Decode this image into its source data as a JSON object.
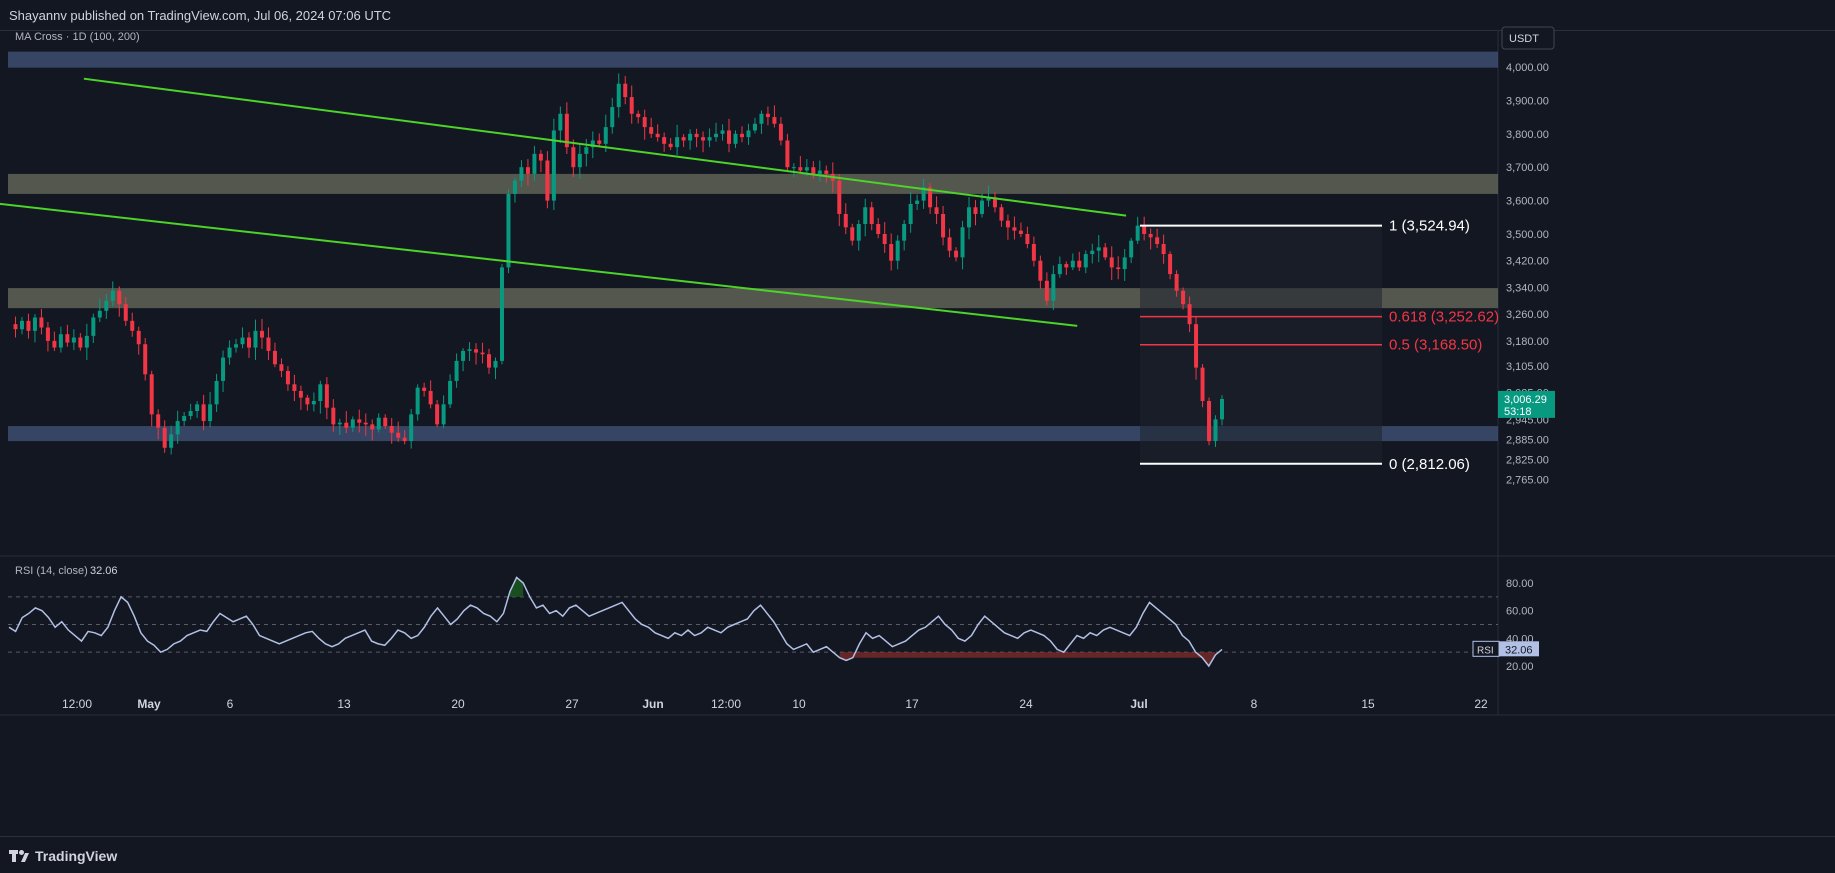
{
  "header": {
    "publisher": "Shayannv published on TradingView.com, Jul 06, 2024 07:06 UTC"
  },
  "footer": {
    "logo_text": "TradingView"
  },
  "chart_data": [
    {
      "type": "candlestick",
      "indicator_label": "MA Cross · 1D (100, 200)",
      "currency_button": "USDT",
      "y_axis_ticks": [
        "4,000.00",
        "3,900.00",
        "3,800.00",
        "3,700.00",
        "3,600.00",
        "3,500.00",
        "3,420.00",
        "3,340.00",
        "3,260.00",
        "3,180.00",
        "3,105.00",
        "3,025.00",
        "2,945.00",
        "2,885.00",
        "2,825.00",
        "2,765.00"
      ],
      "x_axis_ticks": [
        "12:00",
        "May",
        "6",
        "13",
        "20",
        "27",
        "Jun",
        "12:00",
        "10",
        "17",
        "24",
        "Jul",
        "8",
        "15",
        "22"
      ],
      "last_price": {
        "value": "3,006.29",
        "countdown": "53:18",
        "color": "#089981"
      },
      "colors": {
        "up": "#089981",
        "down": "#f23645",
        "trendline": "#4cd428",
        "zone_blue": "#3d4d6e",
        "zone_gray": "#6b6e5e"
      },
      "zones": [
        {
          "name": "supply-zone-top",
          "from": 3998,
          "to": 4046,
          "color": "blue"
        },
        {
          "name": "resistance-zone",
          "from": 3620,
          "to": 3680,
          "color": "gray"
        },
        {
          "name": "mid-zone",
          "from": 3278,
          "to": 3338,
          "color": "gray"
        },
        {
          "name": "support-zone",
          "from": 2880,
          "to": 2925,
          "color": "blue"
        }
      ],
      "descending_channel": {
        "upper": [
          {
            "date": "2024-04-27",
            "price": 3965
          },
          {
            "date": "2024-06-30",
            "price": 3555
          }
        ],
        "lower": [
          {
            "date": "2024-04-21",
            "price": 3595
          },
          {
            "date": "2024-06-27",
            "price": 3225
          }
        ]
      },
      "fibonacci": [
        {
          "label": "1 (3,524.94)",
          "price": 3524.94,
          "color": "#ffffff"
        },
        {
          "label": "0.618 (3,252.62)",
          "price": 3252.62,
          "color": "#f23645"
        },
        {
          "label": "0.5 (3,168.50)",
          "price": 3168.5,
          "color": "#f23645"
        },
        {
          "label": "0 (2,812.06)",
          "price": 2812.06,
          "color": "#ffffff"
        }
      ],
      "price_path": [
        3230,
        3215,
        3240,
        3210,
        3250,
        3220,
        3180,
        3160,
        3200,
        3175,
        3190,
        3160,
        3195,
        3250,
        3270,
        3300,
        3330,
        3290,
        3240,
        3210,
        3170,
        3080,
        2960,
        2920,
        2860,
        2900,
        2940,
        2955,
        2970,
        2990,
        2940,
        2990,
        3060,
        3130,
        3160,
        3170,
        3190,
        3160,
        3210,
        3190,
        3150,
        3110,
        3090,
        3050,
        3030,
        3010,
        2990,
        3000,
        3050,
        2980,
        2930,
        2935,
        2920,
        2945,
        2935,
        2930,
        2915,
        2950,
        2925,
        2905,
        2890,
        2880,
        2960,
        3040,
        3030,
        2990,
        2930,
        2990,
        3060,
        3120,
        3150,
        3155,
        3145,
        3140,
        3100,
        3120,
        3400,
        3620,
        3660,
        3700,
        3680,
        3740,
        3720,
        3600,
        3810,
        3860,
        3760,
        3700,
        3740,
        3760,
        3780,
        3770,
        3820,
        3880,
        3950,
        3910,
        3860,
        3850,
        3820,
        3800,
        3790,
        3770,
        3760,
        3790,
        3780,
        3800,
        3790,
        3780,
        3790,
        3800,
        3810,
        3770,
        3800,
        3790,
        3810,
        3830,
        3860,
        3850,
        3830,
        3780,
        3700,
        3700,
        3690,
        3700,
        3680,
        3690,
        3680,
        3660,
        3560,
        3520,
        3480,
        3530,
        3580,
        3530,
        3500,
        3470,
        3420,
        3480,
        3530,
        3590,
        3600,
        3640,
        3580,
        3560,
        3490,
        3450,
        3430,
        3520,
        3580,
        3560,
        3600,
        3610,
        3580,
        3540,
        3520,
        3510,
        3500,
        3470,
        3420,
        3360,
        3300,
        3380,
        3410,
        3400,
        3420,
        3400,
        3440,
        3450,
        3460,
        3430,
        3400,
        3395,
        3430,
        3480,
        3525,
        3500,
        3490,
        3470,
        3440,
        3380,
        3330,
        3290,
        3230,
        3100,
        3000,
        2880,
        2945,
        3006
      ],
      "rsi": {
        "label": "RSI (14, close)",
        "value": "32.06",
        "levels": [
          70,
          50,
          30
        ],
        "ticks": [
          "80.00",
          "60.00",
          "40.00",
          "20.00"
        ],
        "series": [
          48,
          45,
          55,
          58,
          62,
          60,
          55,
          48,
          52,
          46,
          42,
          38,
          45,
          44,
          42,
          48,
          60,
          70,
          66,
          56,
          44,
          38,
          35,
          30,
          32,
          36,
          38,
          42,
          44,
          46,
          45,
          52,
          58,
          55,
          52,
          54,
          56,
          50,
          42,
          40,
          38,
          36,
          38,
          40,
          42,
          44,
          45,
          40,
          36,
          34,
          36,
          40,
          42,
          44,
          46,
          38,
          36,
          35,
          40,
          46,
          44,
          40,
          42,
          48,
          56,
          62,
          56,
          50,
          54,
          60,
          64,
          62,
          58,
          56,
          52,
          58,
          74,
          84,
          80,
          70,
          62,
          64,
          58,
          60,
          56,
          62,
          64,
          60,
          56,
          58,
          60,
          62,
          64,
          66,
          60,
          54,
          50,
          48,
          44,
          42,
          40,
          44,
          42,
          46,
          42,
          44,
          48,
          46,
          44,
          48,
          50,
          52,
          54,
          60,
          64,
          58,
          52,
          44,
          36,
          32,
          34,
          36,
          30,
          32,
          34,
          30,
          26,
          24,
          26,
          36,
          44,
          40,
          42,
          38,
          34,
          36,
          38,
          42,
          46,
          48,
          52,
          56,
          50,
          46,
          40,
          38,
          42,
          50,
          56,
          52,
          48,
          44,
          42,
          40,
          44,
          46,
          44,
          42,
          38,
          32,
          30,
          36,
          42,
          40,
          44,
          42,
          46,
          48,
          46,
          44,
          42,
          48,
          58,
          66,
          62,
          58,
          54,
          50,
          42,
          38,
          30,
          26,
          20,
          28,
          32
        ],
        "color": "#b2c0e6",
        "overbought_fill": "#1b5e20",
        "oversold_fill": "#7a2a2a"
      }
    }
  ]
}
